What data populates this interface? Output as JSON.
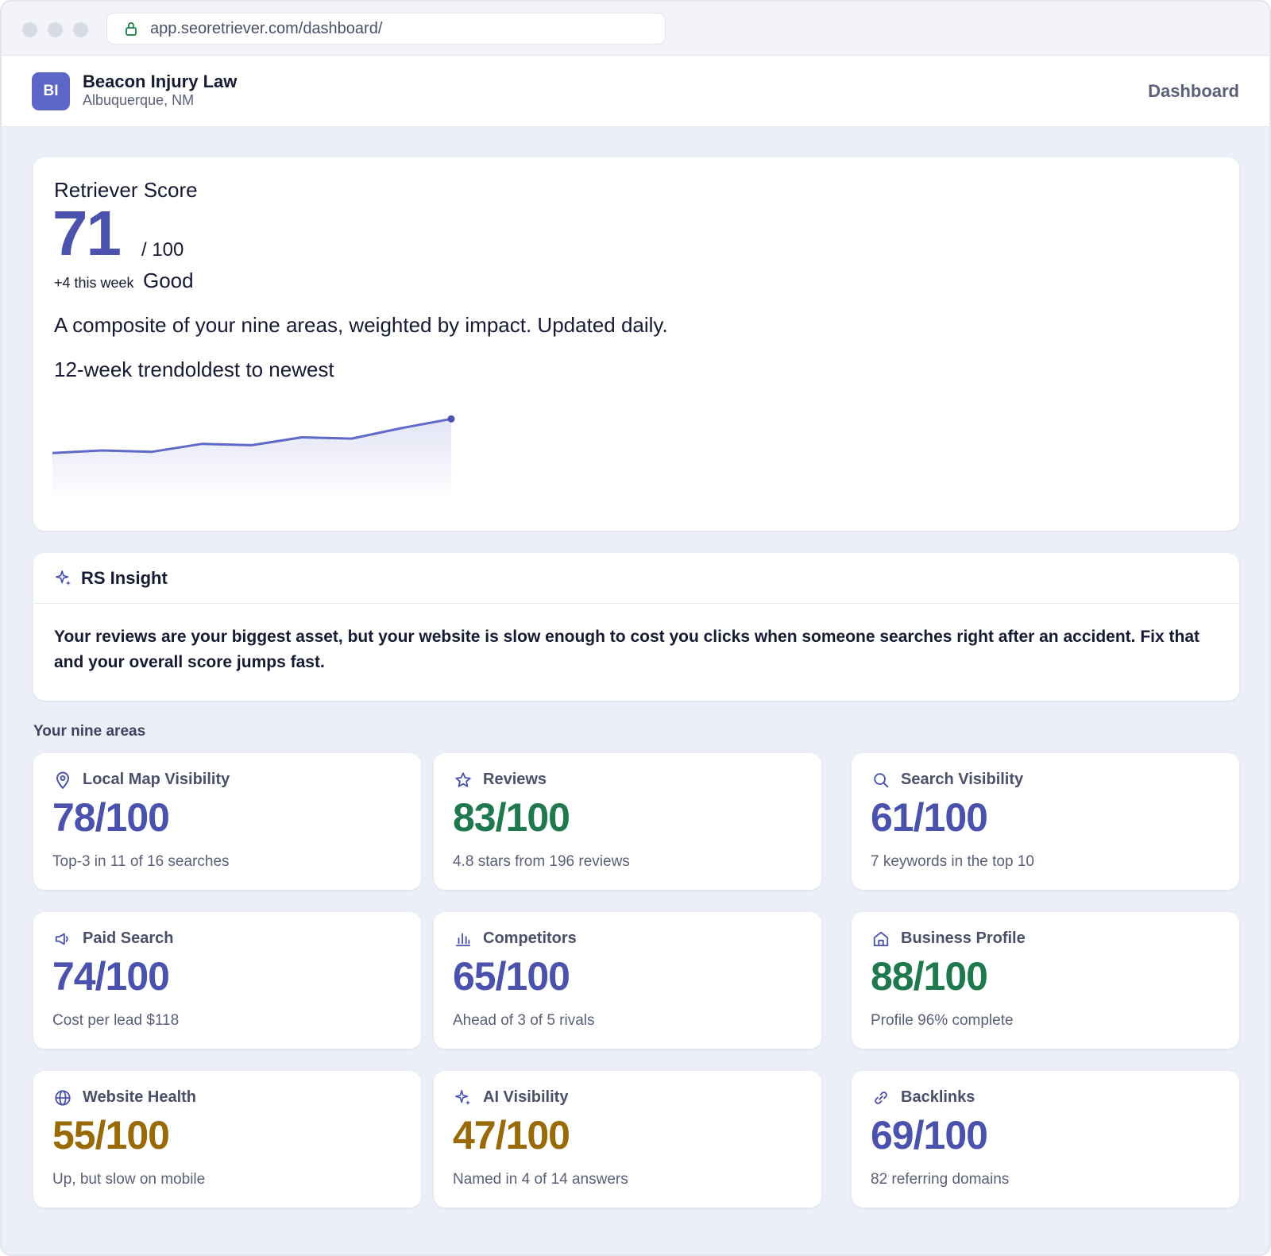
{
  "browser": {
    "url": "app.seoretriever.com/dashboard/"
  },
  "colors": {
    "accent": "#4a52ae",
    "good": "#1e7a4e",
    "warn": "#9a6a06",
    "line": "#5f69c9"
  },
  "header": {
    "avatar_initials": "BI",
    "business_name": "Beacon Injury Law",
    "location": "Albuquerque, NM",
    "nav_label": "Dashboard"
  },
  "score": {
    "title": "Retriever Score",
    "value": "71",
    "out_of": "/ 100",
    "delta": "+4 this week",
    "grade": "Good",
    "description": "A composite of your nine areas, weighted by impact. Updated daily.",
    "trend_label": "12-week trendoldest to newest"
  },
  "chart_data": {
    "type": "area",
    "title": "",
    "xlabel": "",
    "ylabel": "",
    "x": [
      1,
      2,
      3,
      4,
      5,
      6,
      7,
      8,
      9
    ],
    "values": [
      58,
      59,
      58.5,
      61.5,
      61,
      64,
      63.5,
      67.5,
      71
    ],
    "ylim": [
      40,
      75
    ],
    "grid": false,
    "legend": "none"
  },
  "insight": {
    "title": "RS Insight",
    "body": "Your reviews are your biggest asset, but your website is slow enough to cost you clicks when someone searches right after an accident. Fix that and your overall score jumps fast."
  },
  "areas": {
    "label": "Your nine areas",
    "items": [
      {
        "icon": "map-pin-icon",
        "label": "Local Map Visibility",
        "score": "78/100",
        "status": "accent",
        "sub": "Top-3 in 11 of 16 searches"
      },
      {
        "icon": "star-icon",
        "label": "Reviews",
        "score": "83/100",
        "status": "good",
        "sub": "4.8 stars from 196 reviews"
      },
      {
        "icon": "search-icon",
        "label": "Search Visibility",
        "score": "61/100",
        "status": "accent",
        "sub": "7 keywords in the top 10"
      },
      {
        "icon": "megaphone-icon",
        "label": "Paid Search",
        "score": "74/100",
        "status": "accent",
        "sub": "Cost per lead $118"
      },
      {
        "icon": "bar-chart-icon",
        "label": "Competitors",
        "score": "65/100",
        "status": "accent",
        "sub": "Ahead of 3 of 5 rivals"
      },
      {
        "icon": "storefront-icon",
        "label": "Business Profile",
        "score": "88/100",
        "status": "good",
        "sub": "Profile 96% complete"
      },
      {
        "icon": "globe-icon",
        "label": "Website Health",
        "score": "55/100",
        "status": "warn",
        "sub": "Up, but slow on mobile"
      },
      {
        "icon": "sparkle-icon",
        "label": "AI Visibility",
        "score": "47/100",
        "status": "warn",
        "sub": "Named in 4 of 14 answers"
      },
      {
        "icon": "link-icon",
        "label": "Backlinks",
        "score": "69/100",
        "status": "accent",
        "sub": "82 referring domains"
      }
    ]
  }
}
